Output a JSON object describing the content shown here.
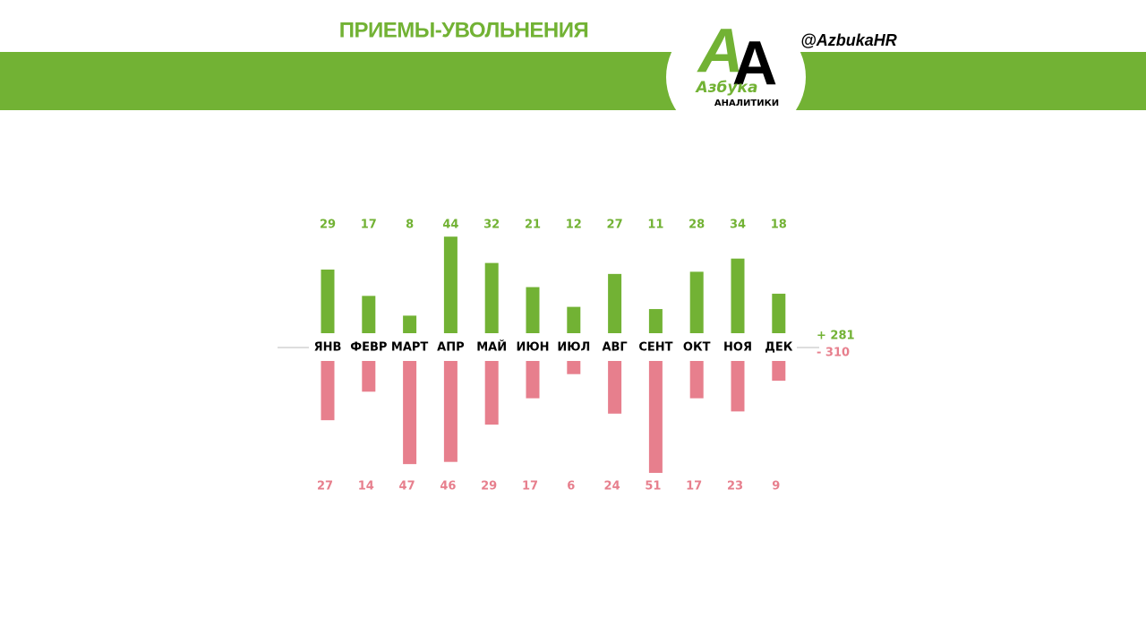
{
  "header": {
    "title": "ПРИЕМЫ-УВОЛЬНЕНИЯ",
    "handle": "@AzbukaHR",
    "logo_letters": [
      "А",
      "А"
    ],
    "logo_word": "Азбука",
    "logo_sub": "АНАЛИТИКИ"
  },
  "chart_data": {
    "type": "bar",
    "categories": [
      "ЯНВ",
      "ФЕВР",
      "МАРТ",
      "АПР",
      "МАЙ",
      "ИЮН",
      "ИЮЛ",
      "АВГ",
      "СЕНТ",
      "ОКТ",
      "НОЯ",
      "ДЕК"
    ],
    "series": [
      {
        "color": "#72b234",
        "values": [
          29,
          17,
          8,
          44,
          32,
          21,
          12,
          27,
          11,
          28,
          34,
          18
        ]
      },
      {
        "color": "#e77f8d",
        "values": [
          27,
          14,
          47,
          46,
          29,
          17,
          6,
          24,
          51,
          17,
          23,
          9
        ]
      }
    ],
    "totals": [
      {
        "value": 281,
        "label": "+ 281"
      },
      {
        "value": 310,
        "label": "- 310"
      }
    ]
  }
}
